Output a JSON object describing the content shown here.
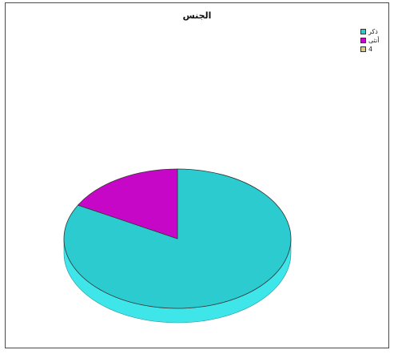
{
  "chart_data": {
    "type": "pie",
    "title": "الجنس",
    "legend_position": "top-right",
    "three_d": true,
    "start_angle_deg": 0,
    "slices": [
      {
        "label": "ذكر",
        "value": 83,
        "color": "#2ccbd0",
        "side_color": "#3ee6ea"
      },
      {
        "label": "أنثى",
        "value": 17,
        "color": "#c707c7",
        "side_color": "#a000a0"
      },
      {
        "label": "4",
        "value": 0,
        "color": "#d9c98a",
        "side_color": "#b8a868"
      }
    ]
  }
}
